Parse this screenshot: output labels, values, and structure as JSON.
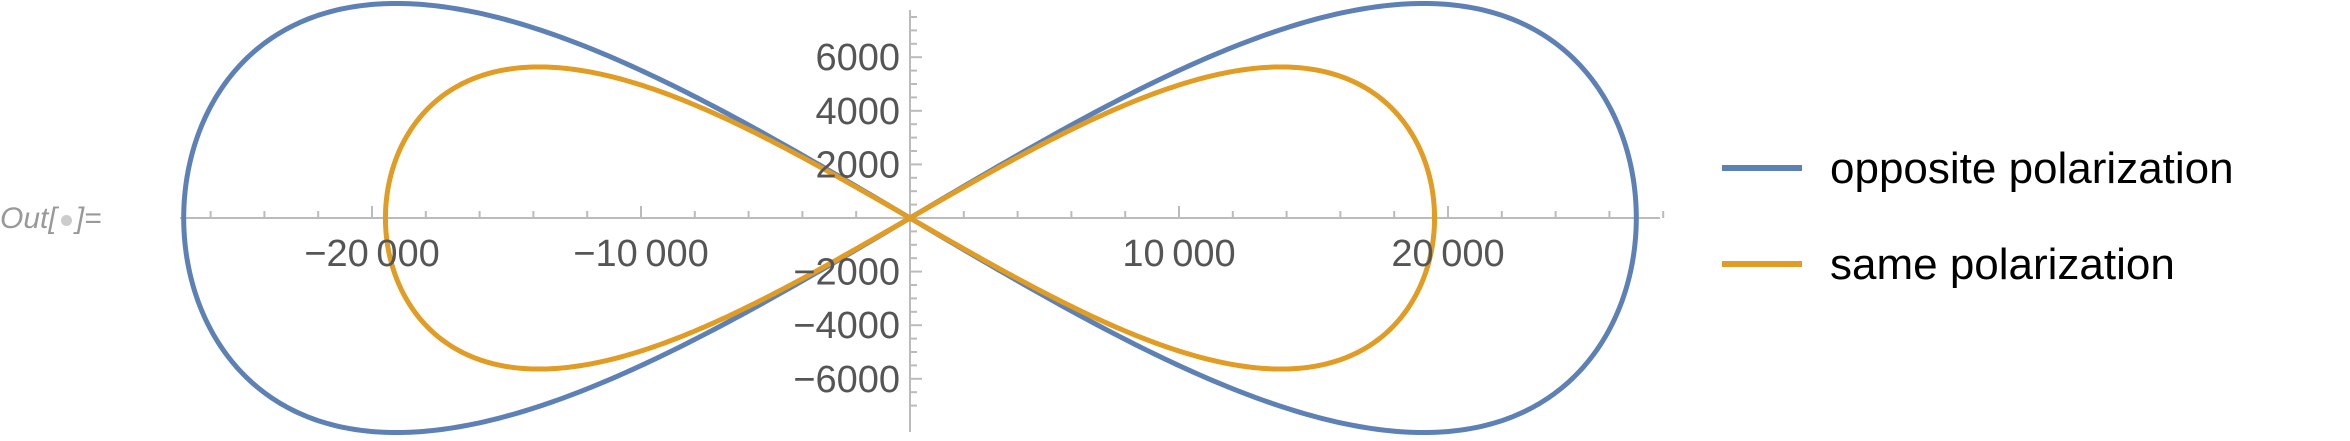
{
  "notebook": {
    "out_prefix": "Out[",
    "out_suffix": "]="
  },
  "chart_data": {
    "type": "line",
    "plot_kind": "parametric",
    "title": "",
    "xlabel": "",
    "ylabel": "",
    "xlim": [
      -27500,
      28500
    ],
    "ylim": [
      -7600,
      7800
    ],
    "x_ticks": [
      -20000,
      -10000,
      10000,
      20000
    ],
    "x_tick_labels": [
      "−20 000",
      "−10 000",
      "10 000",
      "20 000"
    ],
    "y_ticks": [
      -6000,
      -4000,
      -2000,
      2000,
      4000,
      6000
    ],
    "y_tick_labels": [
      "−6000",
      "−4000",
      "−2000",
      "2000",
      "4000",
      "6000"
    ],
    "grid": false,
    "legend_position": "right",
    "series": [
      {
        "name": "opposite polarization",
        "color": "#5e81b5",
        "x_extent": 27000,
        "y_peak": 7500,
        "x_at_peak": 15400
      },
      {
        "name": "same polarization",
        "color": "#e19c24",
        "x_extent": 19500,
        "y_peak": 5300,
        "x_at_peak": 11200
      }
    ]
  }
}
